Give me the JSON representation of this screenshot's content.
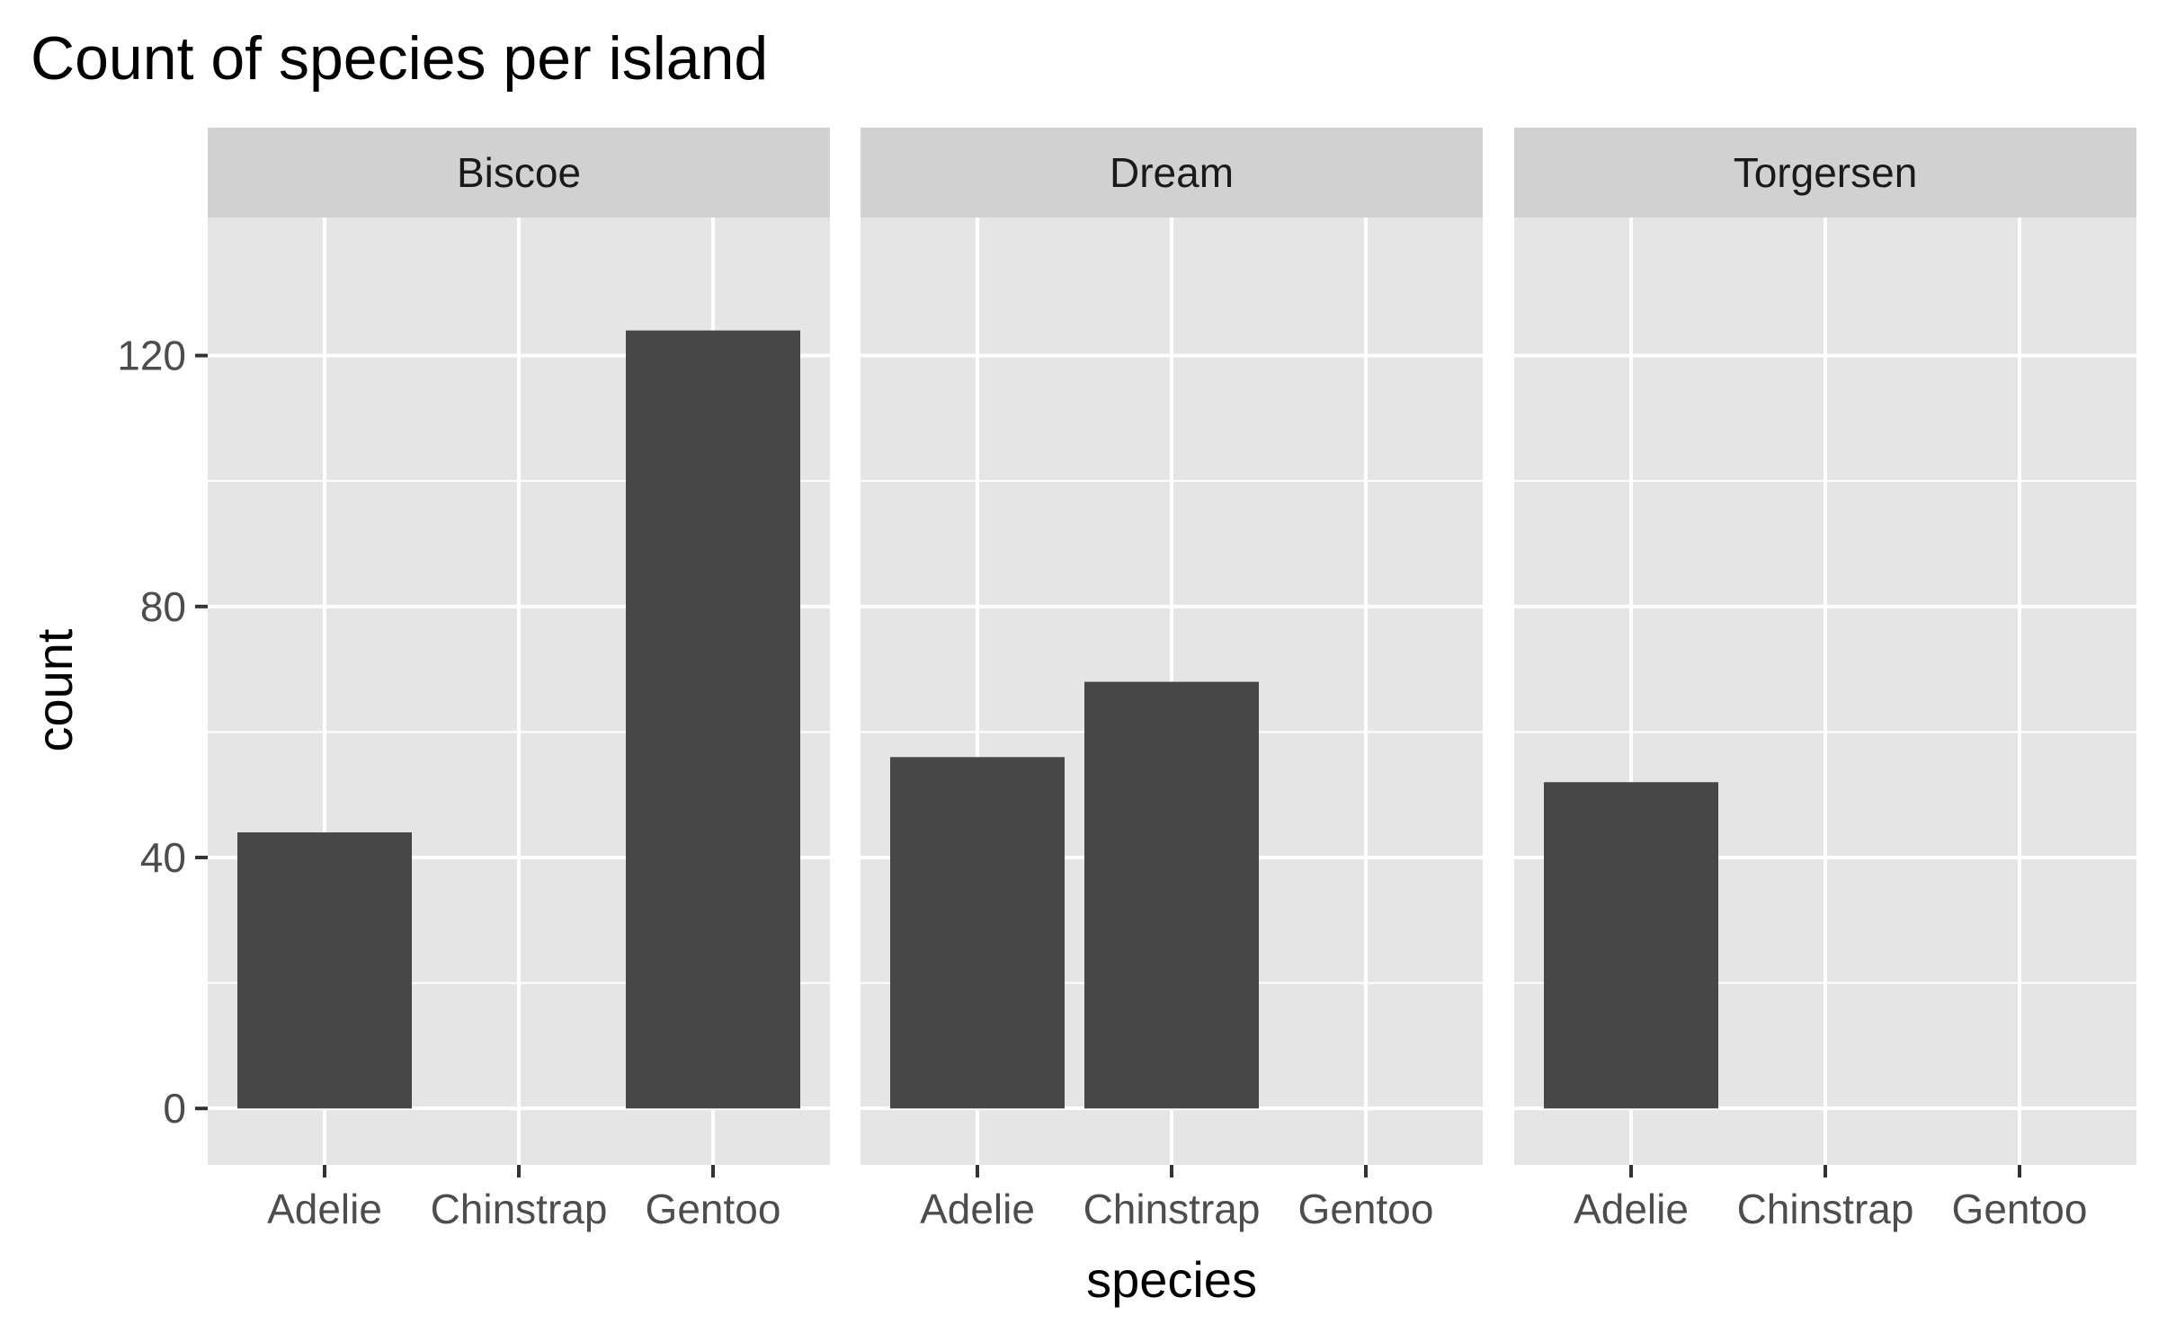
{
  "chart_data": {
    "type": "bar",
    "title": "Count of species per island",
    "xlabel": "species",
    "ylabel": "count",
    "categories": [
      "Adelie",
      "Chinstrap",
      "Gentoo"
    ],
    "ylim": [
      -9,
      142
    ],
    "yticks": [
      0,
      40,
      80,
      120
    ],
    "grid": true,
    "legend": "none",
    "colors": {
      "bar": "#474747",
      "panel": "#e5e5e5",
      "strip": "#d1d1d1",
      "grid": "#ffffff",
      "tick_text": "#4d4d4d"
    },
    "facets": [
      {
        "name": "Biscoe",
        "values": [
          44,
          0,
          124
        ]
      },
      {
        "name": "Dream",
        "values": [
          56,
          68,
          0
        ]
      },
      {
        "name": "Torgersen",
        "values": [
          52,
          0,
          0
        ]
      }
    ]
  }
}
